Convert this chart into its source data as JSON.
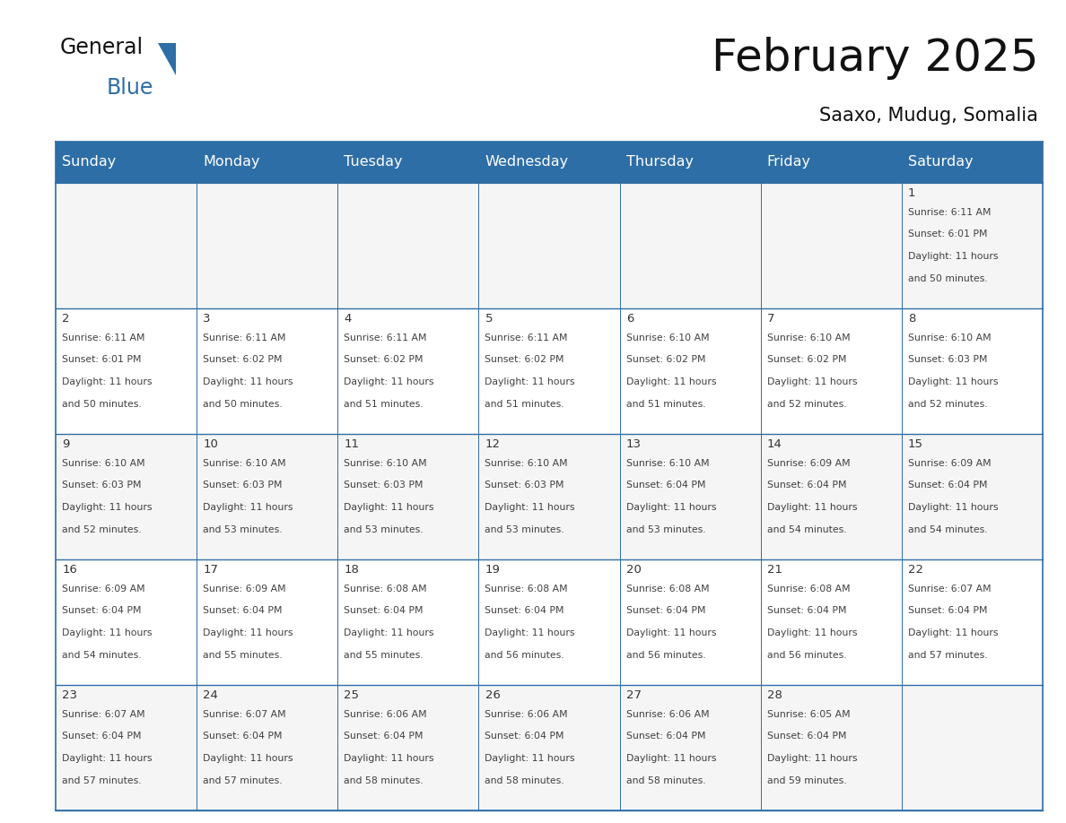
{
  "title": "February 2025",
  "subtitle": "Saaxo, Mudug, Somalia",
  "header_bg_color": "#2E6EA6",
  "header_text_color": "#FFFFFF",
  "grid_line_color": "#2E6EA6",
  "text_color": "#404040",
  "day_number_color": "#333333",
  "day_names": [
    "Sunday",
    "Monday",
    "Tuesday",
    "Wednesday",
    "Thursday",
    "Friday",
    "Saturday"
  ],
  "calendar_data": [
    [
      null,
      null,
      null,
      null,
      null,
      null,
      {
        "day": 1,
        "sunrise": "6:11 AM",
        "sunset": "6:01 PM",
        "daylight_hours": 11,
        "daylight_minutes": 50
      }
    ],
    [
      {
        "day": 2,
        "sunrise": "6:11 AM",
        "sunset": "6:01 PM",
        "daylight_hours": 11,
        "daylight_minutes": 50
      },
      {
        "day": 3,
        "sunrise": "6:11 AM",
        "sunset": "6:02 PM",
        "daylight_hours": 11,
        "daylight_minutes": 50
      },
      {
        "day": 4,
        "sunrise": "6:11 AM",
        "sunset": "6:02 PM",
        "daylight_hours": 11,
        "daylight_minutes": 51
      },
      {
        "day": 5,
        "sunrise": "6:11 AM",
        "sunset": "6:02 PM",
        "daylight_hours": 11,
        "daylight_minutes": 51
      },
      {
        "day": 6,
        "sunrise": "6:10 AM",
        "sunset": "6:02 PM",
        "daylight_hours": 11,
        "daylight_minutes": 51
      },
      {
        "day": 7,
        "sunrise": "6:10 AM",
        "sunset": "6:02 PM",
        "daylight_hours": 11,
        "daylight_minutes": 52
      },
      {
        "day": 8,
        "sunrise": "6:10 AM",
        "sunset": "6:03 PM",
        "daylight_hours": 11,
        "daylight_minutes": 52
      }
    ],
    [
      {
        "day": 9,
        "sunrise": "6:10 AM",
        "sunset": "6:03 PM",
        "daylight_hours": 11,
        "daylight_minutes": 52
      },
      {
        "day": 10,
        "sunrise": "6:10 AM",
        "sunset": "6:03 PM",
        "daylight_hours": 11,
        "daylight_minutes": 53
      },
      {
        "day": 11,
        "sunrise": "6:10 AM",
        "sunset": "6:03 PM",
        "daylight_hours": 11,
        "daylight_minutes": 53
      },
      {
        "day": 12,
        "sunrise": "6:10 AM",
        "sunset": "6:03 PM",
        "daylight_hours": 11,
        "daylight_minutes": 53
      },
      {
        "day": 13,
        "sunrise": "6:10 AM",
        "sunset": "6:04 PM",
        "daylight_hours": 11,
        "daylight_minutes": 53
      },
      {
        "day": 14,
        "sunrise": "6:09 AM",
        "sunset": "6:04 PM",
        "daylight_hours": 11,
        "daylight_minutes": 54
      },
      {
        "day": 15,
        "sunrise": "6:09 AM",
        "sunset": "6:04 PM",
        "daylight_hours": 11,
        "daylight_minutes": 54
      }
    ],
    [
      {
        "day": 16,
        "sunrise": "6:09 AM",
        "sunset": "6:04 PM",
        "daylight_hours": 11,
        "daylight_minutes": 54
      },
      {
        "day": 17,
        "sunrise": "6:09 AM",
        "sunset": "6:04 PM",
        "daylight_hours": 11,
        "daylight_minutes": 55
      },
      {
        "day": 18,
        "sunrise": "6:08 AM",
        "sunset": "6:04 PM",
        "daylight_hours": 11,
        "daylight_minutes": 55
      },
      {
        "day": 19,
        "sunrise": "6:08 AM",
        "sunset": "6:04 PM",
        "daylight_hours": 11,
        "daylight_minutes": 56
      },
      {
        "day": 20,
        "sunrise": "6:08 AM",
        "sunset": "6:04 PM",
        "daylight_hours": 11,
        "daylight_minutes": 56
      },
      {
        "day": 21,
        "sunrise": "6:08 AM",
        "sunset": "6:04 PM",
        "daylight_hours": 11,
        "daylight_minutes": 56
      },
      {
        "day": 22,
        "sunrise": "6:07 AM",
        "sunset": "6:04 PM",
        "daylight_hours": 11,
        "daylight_minutes": 57
      }
    ],
    [
      {
        "day": 23,
        "sunrise": "6:07 AM",
        "sunset": "6:04 PM",
        "daylight_hours": 11,
        "daylight_minutes": 57
      },
      {
        "day": 24,
        "sunrise": "6:07 AM",
        "sunset": "6:04 PM",
        "daylight_hours": 11,
        "daylight_minutes": 57
      },
      {
        "day": 25,
        "sunrise": "6:06 AM",
        "sunset": "6:04 PM",
        "daylight_hours": 11,
        "daylight_minutes": 58
      },
      {
        "day": 26,
        "sunrise": "6:06 AM",
        "sunset": "6:04 PM",
        "daylight_hours": 11,
        "daylight_minutes": 58
      },
      {
        "day": 27,
        "sunrise": "6:06 AM",
        "sunset": "6:04 PM",
        "daylight_hours": 11,
        "daylight_minutes": 58
      },
      {
        "day": 28,
        "sunrise": "6:05 AM",
        "sunset": "6:04 PM",
        "daylight_hours": 11,
        "daylight_minutes": 59
      },
      null
    ]
  ],
  "figsize": [
    11.88,
    9.18
  ],
  "dpi": 100
}
